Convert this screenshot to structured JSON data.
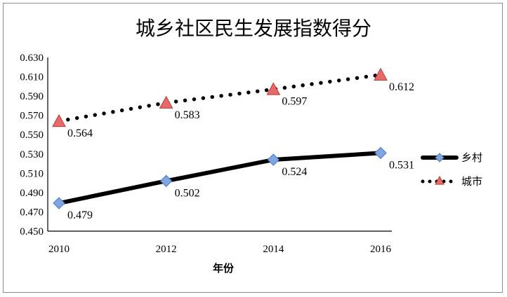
{
  "chart_data": {
    "type": "line",
    "title": "城乡社区民生发展指数得分",
    "xlabel": "年份",
    "ylabel": "",
    "x": [
      "2010",
      "2012",
      "2014",
      "2016"
    ],
    "ylim": [
      0.45,
      0.63
    ],
    "yticks": [
      "0.630",
      "0.610",
      "0.590",
      "0.570",
      "0.550",
      "0.530",
      "0.510",
      "0.490",
      "0.470",
      "0.450"
    ],
    "grid": false,
    "legend_position": "right",
    "series": [
      {
        "name": "乡村",
        "values": [
          0.479,
          0.502,
          0.524,
          0.531
        ],
        "labels": [
          "0.479",
          "0.502",
          "0.524",
          "0.531"
        ],
        "line_color": "#000000",
        "line_style": "solid",
        "marker": "diamond",
        "marker_color": "#7ea6e0"
      },
      {
        "name": "城市",
        "values": [
          0.564,
          0.583,
          0.597,
          0.612
        ],
        "labels": [
          "0.564",
          "0.583",
          "0.597",
          "0.612"
        ],
        "line_color": "#000000",
        "line_style": "dotted",
        "marker": "triangle",
        "marker_color": "#e8696b"
      }
    ]
  }
}
